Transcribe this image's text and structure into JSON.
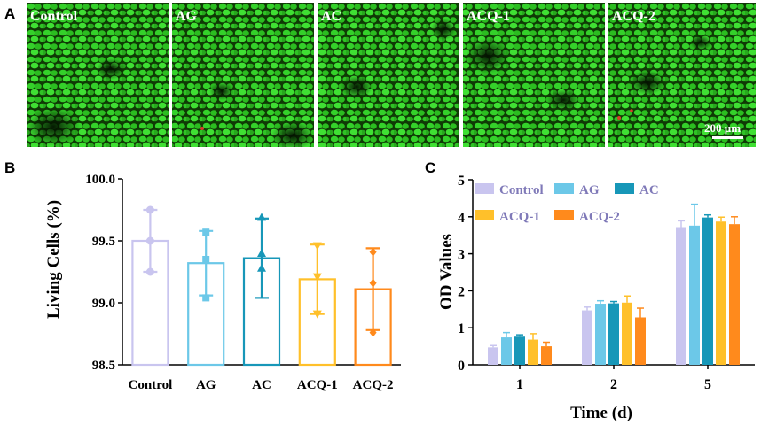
{
  "panels": {
    "a": "A",
    "b": "B",
    "c": "C"
  },
  "microscopy": {
    "labels": [
      "Control",
      "AG",
      "AC",
      "ACQ-1",
      "ACQ-2"
    ],
    "scale_bar": "200 µm"
  },
  "chart_data": [
    {
      "type": "bar",
      "title": "",
      "xlabel": "",
      "ylabel": "Living Cells (%)",
      "ylim": [
        98.5,
        100.0
      ],
      "yticks": [
        "98.5",
        "99.0",
        "99.5",
        "100.0"
      ],
      "categories": [
        "Control",
        "AG",
        "AC",
        "ACQ-1",
        "ACQ-2"
      ],
      "values": [
        99.5,
        99.32,
        99.36,
        99.19,
        99.11
      ],
      "errors": [
        0.25,
        0.26,
        0.32,
        0.28,
        0.33
      ],
      "points": [
        [
          99.75,
          99.5,
          99.25
        ],
        [
          99.57,
          99.35,
          99.04
        ],
        [
          99.69,
          99.4,
          99.28
        ],
        [
          99.46,
          99.21,
          98.91
        ],
        [
          99.41,
          99.16,
          98.76
        ]
      ],
      "markers": [
        "circle",
        "square",
        "triangle-up",
        "triangle-down",
        "diamond"
      ],
      "colors": [
        "#c9c5ef",
        "#6cc8e8",
        "#1797b8",
        "#ffc02a",
        "#ff8a1c"
      ]
    },
    {
      "type": "bar",
      "title": "",
      "xlabel": "Time (d)",
      "ylabel": "OD Values",
      "ylim": [
        0,
        5
      ],
      "yticks": [
        "0",
        "1",
        "2",
        "3",
        "4",
        "5"
      ],
      "categories": [
        "1",
        "2",
        "5"
      ],
      "legend": {
        "placement": "top-left",
        "entries": [
          "Control",
          "AG",
          "AC",
          "ACQ-1",
          "ACQ-2"
        ]
      },
      "series": [
        {
          "name": "Control",
          "color": "#c9c5ef",
          "values": [
            0.47,
            1.47,
            3.72
          ],
          "errors": [
            0.05,
            0.09,
            0.17
          ]
        },
        {
          "name": "AG",
          "color": "#6cc8e8",
          "values": [
            0.74,
            1.65,
            3.76
          ],
          "errors": [
            0.13,
            0.08,
            0.58
          ]
        },
        {
          "name": "AC",
          "color": "#1797b8",
          "values": [
            0.76,
            1.66,
            3.98
          ],
          "errors": [
            0.05,
            0.05,
            0.07
          ]
        },
        {
          "name": "ACQ-1",
          "color": "#ffc02a",
          "values": [
            0.68,
            1.68,
            3.87
          ],
          "errors": [
            0.16,
            0.18,
            0.12
          ]
        },
        {
          "name": "ACQ-2",
          "color": "#ff8a1c",
          "values": [
            0.5,
            1.28,
            3.8
          ],
          "errors": [
            0.11,
            0.25,
            0.2
          ]
        }
      ]
    }
  ]
}
